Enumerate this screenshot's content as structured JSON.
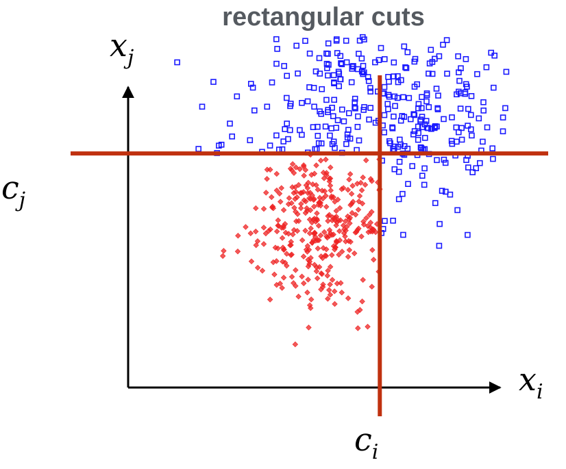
{
  "chart_data": {
    "type": "scatter",
    "title": "rectangular cuts",
    "xlabel": {
      "base": "x",
      "sub": "i"
    },
    "ylabel": {
      "base": "x",
      "sub": "j"
    },
    "cut_labels": {
      "vertical": {
        "base": "c",
        "sub": "i"
      },
      "horizontal": {
        "base": "c",
        "sub": "j"
      }
    },
    "xlim": [
      0,
      100
    ],
    "ylim": [
      0,
      100
    ],
    "cuts": {
      "x": 63,
      "y": 65
    },
    "colors": {
      "cut_line": "#c0310f",
      "axis": "#000000"
    },
    "series": [
      {
        "marker": "square",
        "color": "#1a1aff",
        "rule": "outside the lower-left cut rectangle",
        "count": 320,
        "center": [
          63,
          77
        ],
        "spread": [
          18,
          15
        ],
        "seed": 11
      },
      {
        "marker": "diamond",
        "color": "#ee2222",
        "rule": "inside the lower-left cut rectangle",
        "count": 340,
        "center": [
          48,
          45
        ],
        "spread": [
          9,
          11
        ],
        "seed": 29
      }
    ]
  }
}
